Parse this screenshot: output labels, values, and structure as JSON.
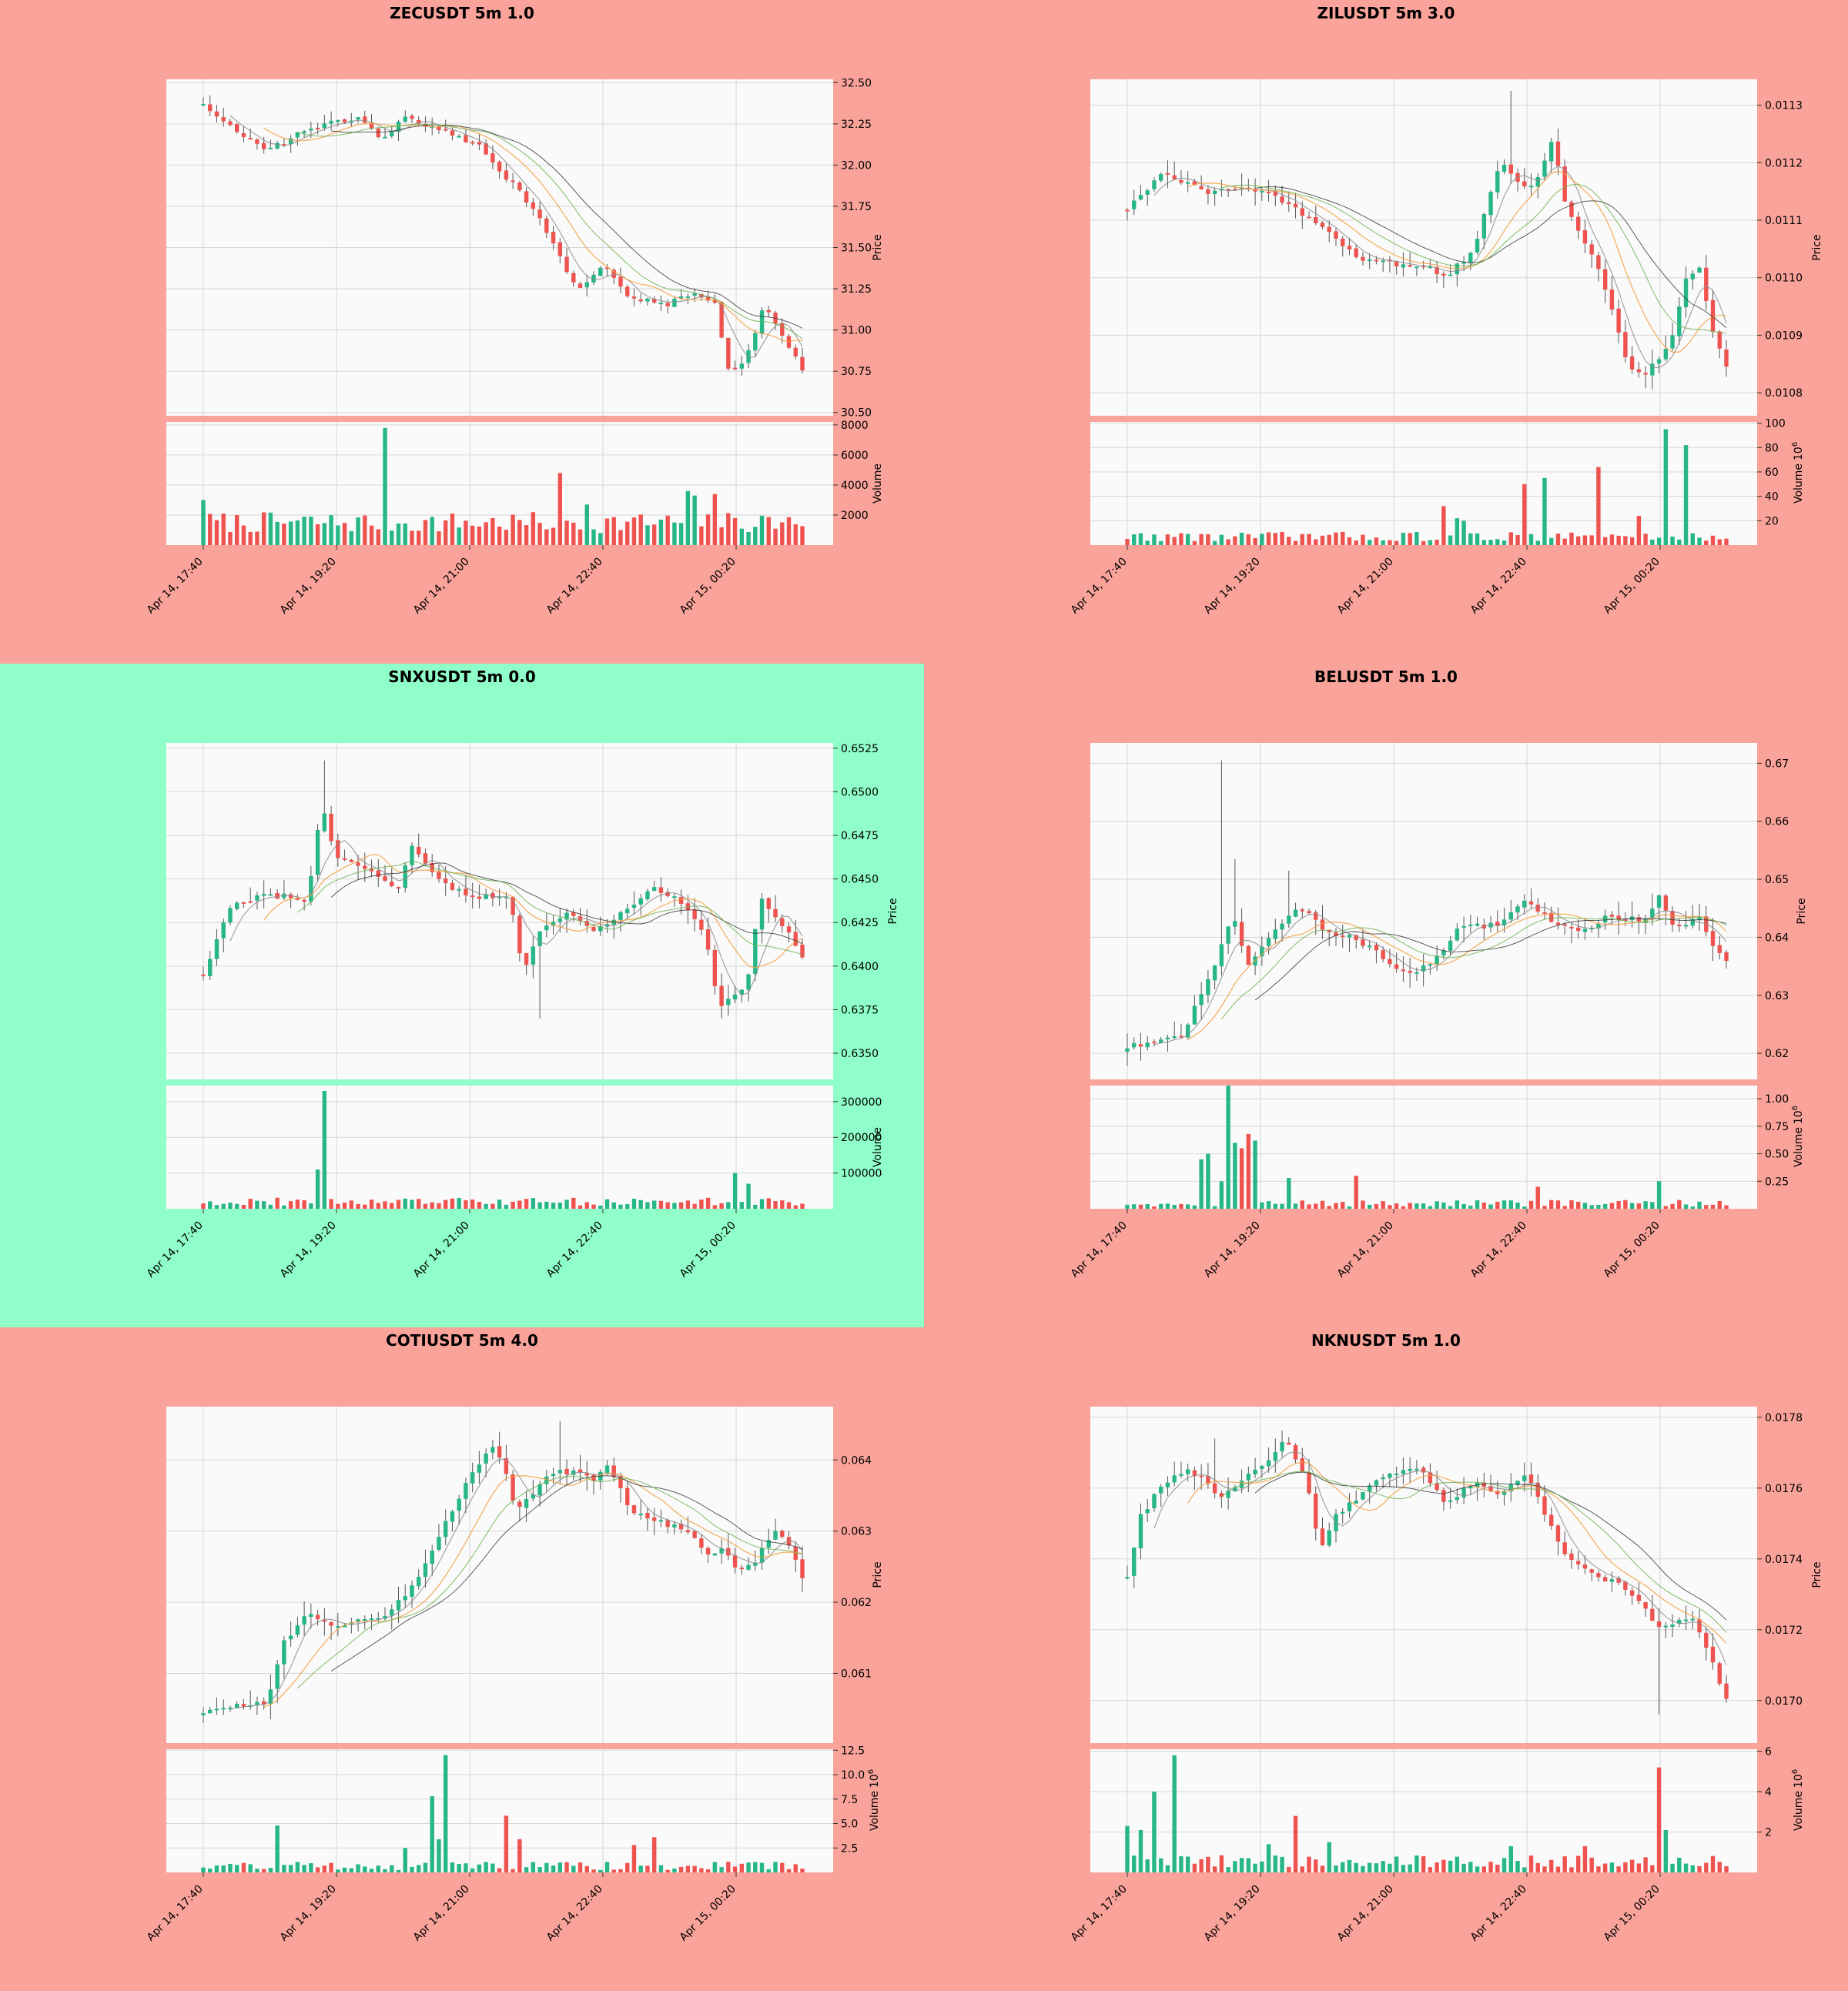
{
  "colors": {
    "page_bg": "#f9a39a",
    "highlight_bg": "#8ffec8",
    "plot_bg": "#fafafa",
    "grid": "#d6d6d6",
    "up": "#26b688",
    "down": "#ef5350",
    "ma_fast": "#8a8a8a",
    "ma_mid": "#f39c3c",
    "ma_slow": "#2b2b2b",
    "ma_slower": "#6ab04c"
  },
  "chart_data": [
    {
      "type": "candlestick",
      "title": "ZECUSDT 5m 1.0",
      "highlighted": false,
      "price_label": "Price",
      "volume_label": "Volume",
      "volume_exponent": "",
      "price_ylim": [
        30.48,
        32.52
      ],
      "price_ticks": [
        "30.50",
        "30.75",
        "31.00",
        "31.25",
        "31.50",
        "31.75",
        "32.00",
        "32.25",
        "32.50"
      ],
      "volume_ylim": [
        0,
        8200
      ],
      "volume_ticks": [
        {
          "v": 2000,
          "label": "2000"
        },
        {
          "v": 4000,
          "label": "4000"
        },
        {
          "v": 6000,
          "label": "6000"
        },
        {
          "v": 8000,
          "label": "8000"
        }
      ],
      "x_ticks": [
        "Apr 14, 17:40",
        "Apr 14, 19:20",
        "Apr 14, 21:00",
        "Apr 14, 22:40",
        "Apr 15, 00:20"
      ],
      "candles": 90,
      "anchors": [
        [
          0,
          32.38
        ],
        [
          6,
          32.18
        ],
        [
          10,
          32.08
        ],
        [
          16,
          32.2
        ],
        [
          25,
          32.3
        ],
        [
          29,
          32.15
        ],
        [
          32,
          32.28
        ],
        [
          38,
          32.22
        ],
        [
          44,
          32.12
        ],
        [
          48,
          31.95
        ],
        [
          52,
          31.78
        ],
        [
          55,
          31.6
        ],
        [
          60,
          31.22
        ],
        [
          64,
          31.4
        ],
        [
          68,
          31.2
        ],
        [
          74,
          31.15
        ],
        [
          78,
          31.22
        ],
        [
          82,
          31.15
        ],
        [
          84,
          30.78
        ],
        [
          86,
          30.75
        ],
        [
          90,
          31.15
        ],
        [
          93,
          30.95
        ],
        [
          96,
          30.75
        ]
      ],
      "wick_scale": 0.08,
      "spikes": [],
      "vol_base": 800,
      "vol_amp": 1400,
      "vol_spikes": [
        [
          0,
          3000
        ],
        [
          29,
          7800
        ],
        [
          57,
          4800
        ],
        [
          62,
          2700
        ],
        [
          78,
          3600
        ],
        [
          79,
          3300
        ],
        [
          82,
          3400
        ]
      ]
    },
    {
      "type": "candlestick",
      "title": "ZILUSDT 5m 3.0",
      "highlighted": false,
      "price_label": "Price",
      "volume_label": "Volume",
      "volume_exponent": "6",
      "price_ylim": [
        0.01076,
        0.011345
      ],
      "price_ticks": [
        "0.0108",
        "0.0109",
        "0.0110",
        "0.0111",
        "0.0112",
        "0.0113"
      ],
      "volume_ylim": [
        0,
        101
      ],
      "volume_ticks": [
        {
          "v": 20,
          "label": "20"
        },
        {
          "v": 40,
          "label": "40"
        },
        {
          "v": 60,
          "label": "60"
        },
        {
          "v": 80,
          "label": "80"
        },
        {
          "v": 100,
          "label": "100"
        }
      ],
      "x_ticks": [
        "Apr 14, 17:40",
        "Apr 14, 19:20",
        "Apr 14, 21:00",
        "Apr 14, 22:40",
        "Apr 15, 00:20"
      ],
      "candles": 90,
      "anchors": [
        [
          0,
          0.01112
        ],
        [
          5,
          0.01118
        ],
        [
          12,
          0.01115
        ],
        [
          18,
          0.01116
        ],
        [
          22,
          0.01114
        ],
        [
          28,
          0.0111
        ],
        [
          35,
          0.01103
        ],
        [
          45,
          0.01102
        ],
        [
          48,
          0.011
        ],
        [
          52,
          0.01105
        ],
        [
          56,
          0.0112
        ],
        [
          60,
          0.01115
        ],
        [
          62,
          0.01118
        ],
        [
          64,
          0.01124
        ],
        [
          66,
          0.01112
        ],
        [
          70,
          0.01104
        ],
        [
          73,
          0.01094
        ],
        [
          75,
          0.01085
        ],
        [
          78,
          0.01083
        ],
        [
          82,
          0.0109
        ],
        [
          84,
          0.011
        ],
        [
          86,
          0.01102
        ],
        [
          88,
          0.0109
        ],
        [
          90,
          0.01085
        ]
      ],
      "wick_scale": 0.12,
      "spikes": [
        [
          58,
          0.011325
        ]
      ],
      "vol_base": 3,
      "vol_amp": 8,
      "vol_spikes": [
        [
          48,
          32
        ],
        [
          50,
          22
        ],
        [
          51,
          20
        ],
        [
          60,
          50
        ],
        [
          63,
          55
        ],
        [
          71,
          64
        ],
        [
          77,
          24
        ],
        [
          81,
          95
        ],
        [
          84,
          82
        ]
      ]
    },
    {
      "type": "candlestick",
      "title": "SNXUSDT 5m 0.0",
      "highlighted": true,
      "price_label": "Price",
      "volume_label": "Volume",
      "volume_exponent": "",
      "price_ylim": [
        0.6335,
        0.6528
      ],
      "price_ticks": [
        "0.6350",
        "0.6375",
        "0.6400",
        "0.6425",
        "0.6450",
        "0.6475",
        "0.6500",
        "0.6525"
      ],
      "volume_ylim": [
        0,
        345000
      ],
      "volume_ticks": [
        {
          "v": 100000,
          "label": "100000"
        },
        {
          "v": 200000,
          "label": "200000"
        },
        {
          "v": 300000,
          "label": "300000"
        }
      ],
      "x_ticks": [
        "Apr 14, 17:40",
        "Apr 14, 19:20",
        "Apr 14, 21:00",
        "Apr 14, 22:40",
        "Apr 15, 00:20"
      ],
      "candles": 90,
      "anchors": [
        [
          0,
          0.6395
        ],
        [
          4,
          0.6435
        ],
        [
          8,
          0.644
        ],
        [
          12,
          0.644
        ],
        [
          15,
          0.6438
        ],
        [
          17,
          0.6495
        ],
        [
          19,
          0.6462
        ],
        [
          24,
          0.6455
        ],
        [
          28,
          0.6445
        ],
        [
          30,
          0.647
        ],
        [
          34,
          0.6448
        ],
        [
          38,
          0.644
        ],
        [
          44,
          0.644
        ],
        [
          46,
          0.6395
        ],
        [
          48,
          0.642
        ],
        [
          52,
          0.643
        ],
        [
          56,
          0.642
        ],
        [
          60,
          0.643
        ],
        [
          64,
          0.6445
        ],
        [
          68,
          0.644
        ],
        [
          72,
          0.642
        ],
        [
          74,
          0.6375
        ],
        [
          78,
          0.639
        ],
        [
          80,
          0.644
        ],
        [
          84,
          0.642
        ],
        [
          86,
          0.6405
        ]
      ],
      "wick_scale": 0.12,
      "spikes": [
        [
          17,
          0.6518
        ],
        [
          48,
          0.637
        ]
      ],
      "vol_base": 9000,
      "vol_amp": 22000,
      "vol_spikes": [
        [
          16,
          110000
        ],
        [
          17,
          330000
        ],
        [
          76,
          100000
        ],
        [
          78,
          70000
        ]
      ]
    },
    {
      "type": "candlestick",
      "title": "BELUSDT 5m 1.0",
      "highlighted": false,
      "price_label": "Price",
      "volume_label": "Volume",
      "volume_exponent": "6",
      "price_ylim": [
        0.6155,
        0.6735
      ],
      "price_ticks": [
        "0.62",
        "0.63",
        "0.64",
        "0.65",
        "0.66",
        "0.67"
      ],
      "volume_ylim": [
        0,
        1.12
      ],
      "volume_ticks": [
        {
          "v": 0.25,
          "label": "0.25"
        },
        {
          "v": 0.5,
          "label": "0.50"
        },
        {
          "v": 0.75,
          "label": "0.75"
        },
        {
          "v": 1.0,
          "label": "1.00"
        }
      ],
      "x_ticks": [
        "Apr 14, 17:40",
        "Apr 14, 19:20",
        "Apr 14, 21:00",
        "Apr 14, 22:40",
        "Apr 15, 00:20"
      ],
      "candles": 90,
      "anchors": [
        [
          0,
          0.621
        ],
        [
          8,
          0.623
        ],
        [
          12,
          0.632
        ],
        [
          14,
          0.638
        ],
        [
          16,
          0.644
        ],
        [
          18,
          0.635
        ],
        [
          22,
          0.641
        ],
        [
          26,
          0.645
        ],
        [
          30,
          0.641
        ],
        [
          34,
          0.64
        ],
        [
          38,
          0.637
        ],
        [
          42,
          0.6335
        ],
        [
          46,
          0.636
        ],
        [
          50,
          0.642
        ],
        [
          56,
          0.642
        ],
        [
          60,
          0.647
        ],
        [
          64,
          0.642
        ],
        [
          68,
          0.641
        ],
        [
          72,
          0.6435
        ],
        [
          78,
          0.643
        ],
        [
          80,
          0.647
        ],
        [
          82,
          0.642
        ],
        [
          86,
          0.643
        ],
        [
          88,
          0.638
        ],
        [
          90,
          0.6355
        ]
      ],
      "wick_scale": 0.13,
      "spikes": [
        [
          14,
          0.6705
        ],
        [
          16,
          0.6535
        ],
        [
          24,
          0.6515
        ]
      ],
      "vol_base": 0.02,
      "vol_amp": 0.06,
      "vol_spikes": [
        [
          11,
          0.45
        ],
        [
          12,
          0.5
        ],
        [
          14,
          0.25
        ],
        [
          15,
          1.15
        ],
        [
          16,
          0.6
        ],
        [
          17,
          0.55
        ],
        [
          18,
          0.68
        ],
        [
          19,
          0.62
        ],
        [
          24,
          0.28
        ],
        [
          34,
          0.3
        ],
        [
          62,
          0.2
        ],
        [
          80,
          0.25
        ]
      ]
    },
    {
      "type": "candlestick",
      "title": "COTIUSDT 5m 4.0",
      "highlighted": false,
      "price_label": "Price",
      "volume_label": "Volume",
      "volume_exponent": "6",
      "price_ylim": [
        0.06002,
        0.06475
      ],
      "price_ticks": [
        "0.061",
        "0.062",
        "0.063",
        "0.064"
      ],
      "volume_ylim": [
        0,
        12.6
      ],
      "volume_ticks": [
        {
          "v": 2.5,
          "label": "2.5"
        },
        {
          "v": 5.0,
          "label": "5.0"
        },
        {
          "v": 7.5,
          "label": "7.5"
        },
        {
          "v": 10.0,
          "label": "10.0"
        },
        {
          "v": 12.5,
          "label": "12.5"
        }
      ],
      "x_ticks": [
        "Apr 14, 17:40",
        "Apr 14, 19:20",
        "Apr 14, 21:00",
        "Apr 14, 22:40",
        "Apr 15, 00:20"
      ],
      "candles": 90,
      "anchors": [
        [
          0,
          0.06045
        ],
        [
          4,
          0.06055
        ],
        [
          10,
          0.0606
        ],
        [
          12,
          0.0614
        ],
        [
          16,
          0.06185
        ],
        [
          20,
          0.06165
        ],
        [
          24,
          0.06175
        ],
        [
          28,
          0.0618
        ],
        [
          32,
          0.0622
        ],
        [
          36,
          0.0629
        ],
        [
          40,
          0.0636
        ],
        [
          44,
          0.0642
        ],
        [
          46,
          0.06395
        ],
        [
          48,
          0.06325
        ],
        [
          50,
          0.0635
        ],
        [
          54,
          0.06385
        ],
        [
          58,
          0.0638
        ],
        [
          60,
          0.0637
        ],
        [
          62,
          0.0639
        ],
        [
          66,
          0.06325
        ],
        [
          70,
          0.06315
        ],
        [
          74,
          0.063
        ],
        [
          78,
          0.06265
        ],
        [
          80,
          0.06275
        ],
        [
          82,
          0.06245
        ],
        [
          84,
          0.0625
        ],
        [
          88,
          0.063
        ],
        [
          90,
          0.0628
        ],
        [
          92,
          0.06235
        ]
      ],
      "wick_scale": 0.13,
      "spikes": [
        [
          55,
          0.06455
        ]
      ],
      "vol_base": 0.25,
      "vol_amp": 0.9,
      "vol_spikes": [
        [
          11,
          4.8
        ],
        [
          31,
          2.5
        ],
        [
          35,
          7.8
        ],
        [
          36,
          3.4
        ],
        [
          37,
          12.0
        ],
        [
          46,
          5.8
        ],
        [
          49,
          3.4
        ],
        [
          66,
          2.8
        ],
        [
          69,
          3.6
        ]
      ]
    },
    {
      "type": "candlestick",
      "title": "NKNUSDT 5m 1.0",
      "highlighted": false,
      "price_label": "Price",
      "volume_label": "Volume",
      "volume_exponent": "6",
      "price_ylim": [
        0.01688,
        0.01783
      ],
      "price_ticks": [
        "0.0170",
        "0.0172",
        "0.0174",
        "0.0176",
        "0.0178"
      ],
      "volume_ylim": [
        0,
        6.1
      ],
      "volume_ticks": [
        {
          "v": 2,
          "label": "2"
        },
        {
          "v": 4,
          "label": "4"
        },
        {
          "v": 6,
          "label": "6"
        }
      ],
      "x_ticks": [
        "Apr 14, 17:40",
        "Apr 14, 19:20",
        "Apr 14, 21:00",
        "Apr 14, 22:40",
        "Apr 15, 00:20"
      ],
      "candles": 90,
      "anchors": [
        [
          0,
          0.01735
        ],
        [
          2,
          0.01752
        ],
        [
          5,
          0.0176
        ],
        [
          9,
          0.01766
        ],
        [
          14,
          0.01758
        ],
        [
          17,
          0.01762
        ],
        [
          20,
          0.01766
        ],
        [
          24,
          0.01774
        ],
        [
          27,
          0.01762
        ],
        [
          29,
          0.01742
        ],
        [
          31,
          0.01752
        ],
        [
          35,
          0.01758
        ],
        [
          39,
          0.01764
        ],
        [
          44,
          0.01765
        ],
        [
          48,
          0.01755
        ],
        [
          52,
          0.01762
        ],
        [
          56,
          0.01758
        ],
        [
          60,
          0.01764
        ],
        [
          63,
          0.01752
        ],
        [
          66,
          0.0174
        ],
        [
          70,
          0.01735
        ],
        [
          74,
          0.01733
        ],
        [
          78,
          0.01725
        ],
        [
          80,
          0.0172
        ],
        [
          82,
          0.01722
        ],
        [
          85,
          0.01723
        ],
        [
          87,
          0.01715
        ],
        [
          90,
          0.017
        ]
      ],
      "wick_scale": 0.12,
      "spikes": [
        [
          80,
          0.01696
        ],
        [
          13,
          0.01774
        ]
      ],
      "vol_base": 0.25,
      "vol_amp": 0.6,
      "vol_spikes": [
        [
          0,
          2.3
        ],
        [
          2,
          2.1
        ],
        [
          4,
          4.0
        ],
        [
          7,
          5.8
        ],
        [
          21,
          1.4
        ],
        [
          25,
          2.8
        ],
        [
          30,
          1.5
        ],
        [
          58,
          1.3
        ],
        [
          69,
          1.3
        ],
        [
          80,
          5.2
        ],
        [
          81,
          2.1
        ]
      ]
    }
  ]
}
